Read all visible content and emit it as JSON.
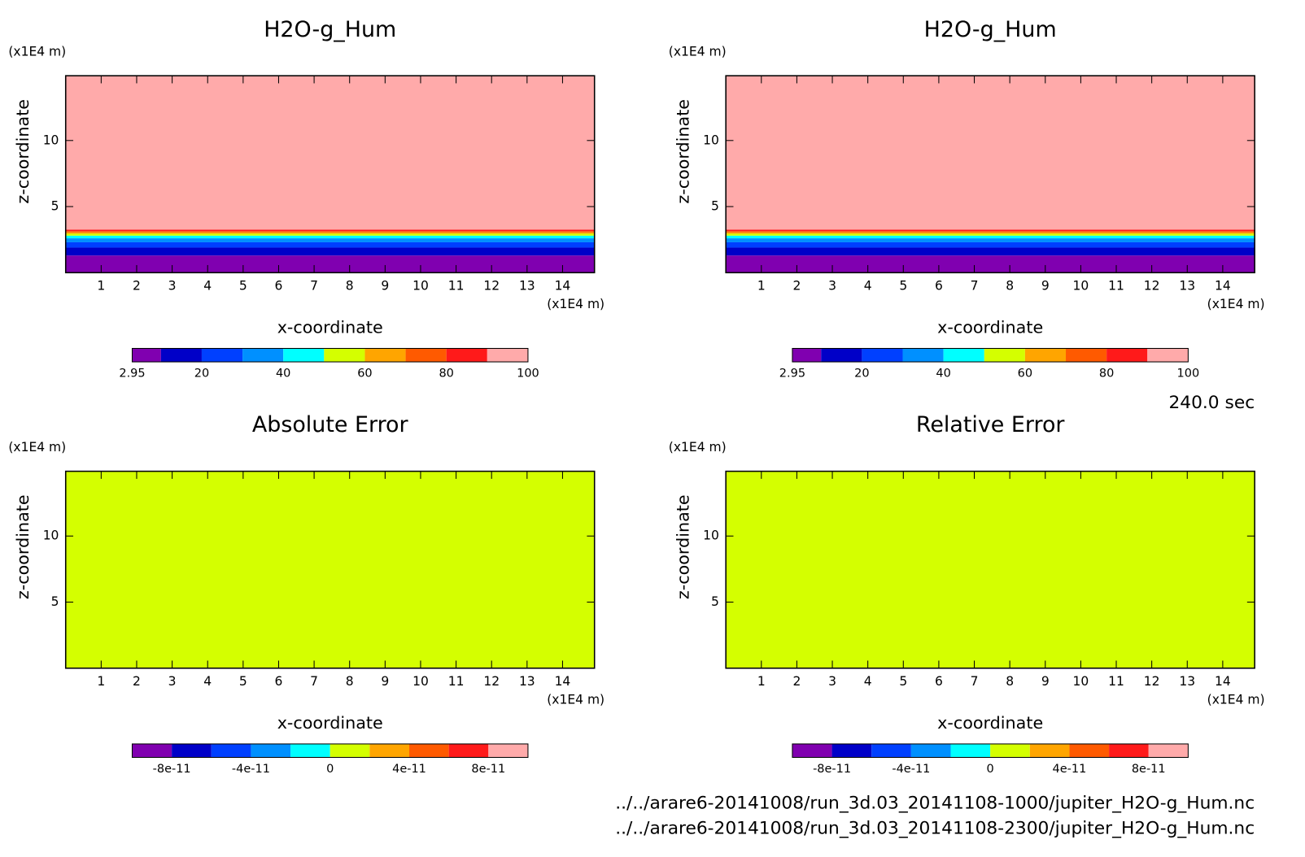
{
  "chart_data": [
    {
      "type": "contour",
      "title": "H2O-g_Hum",
      "xlabel": "x-coordinate",
      "ylabel": "z-coordinate",
      "x_unit": "(x1E4 m)",
      "y_unit": "(x1E4 m)",
      "xlim": [
        0,
        14.9
      ],
      "ylim": [
        0,
        14.9
      ],
      "xticks": [
        1,
        2,
        3,
        4,
        5,
        6,
        7,
        8,
        9,
        10,
        11,
        12,
        13,
        14
      ],
      "yticks": [
        5,
        10
      ],
      "field": {
        "z_edges": [
          0,
          1.3,
          1.9,
          2.3,
          2.6,
          2.8,
          2.95,
          3.05,
          3.15,
          3.25,
          14.9
        ],
        "values": [
          6,
          15,
          25,
          35,
          45,
          55,
          65,
          75,
          85,
          95
        ]
      },
      "colorbar": {
        "levels": [
          2.95,
          10,
          20,
          30,
          40,
          50,
          60,
          70,
          80,
          90,
          100
        ],
        "colors": [
          "#8000b0",
          "#0000c8",
          "#0040ff",
          "#0090ff",
          "#00ffff",
          "#d4ff00",
          "#ffa500",
          "#ff5a00",
          "#ff1a1a",
          "#ffaaaa"
        ],
        "ticks": [
          2.95,
          20,
          40,
          60,
          80,
          100
        ]
      }
    },
    {
      "type": "contour",
      "title": "H2O-g_Hum",
      "xlabel": "x-coordinate",
      "ylabel": "z-coordinate",
      "x_unit": "(x1E4 m)",
      "y_unit": "(x1E4 m)",
      "xlim": [
        0,
        14.9
      ],
      "ylim": [
        0,
        14.9
      ],
      "xticks": [
        1,
        2,
        3,
        4,
        5,
        6,
        7,
        8,
        9,
        10,
        11,
        12,
        13,
        14
      ],
      "yticks": [
        5,
        10
      ],
      "field": {
        "z_edges": [
          0,
          1.3,
          1.9,
          2.3,
          2.6,
          2.8,
          2.95,
          3.05,
          3.15,
          3.25,
          14.9
        ],
        "values": [
          6,
          15,
          25,
          35,
          45,
          55,
          65,
          75,
          85,
          95
        ]
      },
      "colorbar": {
        "levels": [
          2.95,
          10,
          20,
          30,
          40,
          50,
          60,
          70,
          80,
          90,
          100
        ],
        "colors": [
          "#8000b0",
          "#0000c8",
          "#0040ff",
          "#0090ff",
          "#00ffff",
          "#d4ff00",
          "#ffa500",
          "#ff5a00",
          "#ff1a1a",
          "#ffaaaa"
        ],
        "ticks": [
          2.95,
          20,
          40,
          60,
          80,
          100
        ]
      }
    },
    {
      "type": "contour",
      "title": "Absolute Error",
      "xlabel": "x-coordinate",
      "ylabel": "z-coordinate",
      "x_unit": "(x1E4 m)",
      "y_unit": "(x1E4 m)",
      "xlim": [
        0,
        14.9
      ],
      "ylim": [
        0,
        14.9
      ],
      "xticks": [
        1,
        2,
        3,
        4,
        5,
        6,
        7,
        8,
        9,
        10,
        11,
        12,
        13,
        14
      ],
      "yticks": [
        5,
        10
      ],
      "field": {
        "z_edges": [
          0,
          14.9
        ],
        "values": [
          0
        ]
      },
      "colorbar": {
        "levels": [
          -1e-10,
          -8e-11,
          -6e-11,
          -4e-11,
          -2e-11,
          0,
          2e-11,
          4e-11,
          6e-11,
          8e-11,
          1e-10
        ],
        "colors": [
          "#8000b0",
          "#0000c8",
          "#0040ff",
          "#0090ff",
          "#00ffff",
          "#d4ff00",
          "#ffa500",
          "#ff5a00",
          "#ff1a1a",
          "#ffaaaa"
        ],
        "ticks": [
          -8e-11,
          -4e-11,
          0,
          4e-11,
          8e-11
        ]
      }
    },
    {
      "type": "contour",
      "title": "Relative Error",
      "xlabel": "x-coordinate",
      "ylabel": "z-coordinate",
      "x_unit": "(x1E4 m)",
      "y_unit": "(x1E4 m)",
      "xlim": [
        0,
        14.9
      ],
      "ylim": [
        0,
        14.9
      ],
      "xticks": [
        1,
        2,
        3,
        4,
        5,
        6,
        7,
        8,
        9,
        10,
        11,
        12,
        13,
        14
      ],
      "yticks": [
        5,
        10
      ],
      "field": {
        "z_edges": [
          0,
          14.9
        ],
        "values": [
          0
        ]
      },
      "colorbar": {
        "levels": [
          -1e-10,
          -8e-11,
          -6e-11,
          -4e-11,
          -2e-11,
          0,
          2e-11,
          4e-11,
          6e-11,
          8e-11,
          1e-10
        ],
        "colors": [
          "#8000b0",
          "#0000c8",
          "#0040ff",
          "#0090ff",
          "#00ffff",
          "#d4ff00",
          "#ffa500",
          "#ff5a00",
          "#ff1a1a",
          "#ffaaaa"
        ],
        "ticks": [
          -8e-11,
          -4e-11,
          0,
          4e-11,
          8e-11
        ]
      }
    }
  ],
  "time": "240.0 sec",
  "files": [
    "../../arare6-20141008/run_3d.03_20141108-1000/jupiter_H2O-g_Hum.nc",
    "../../arare6-20141008/run_3d.03_20141108-2300/jupiter_H2O-g_Hum.nc"
  ]
}
